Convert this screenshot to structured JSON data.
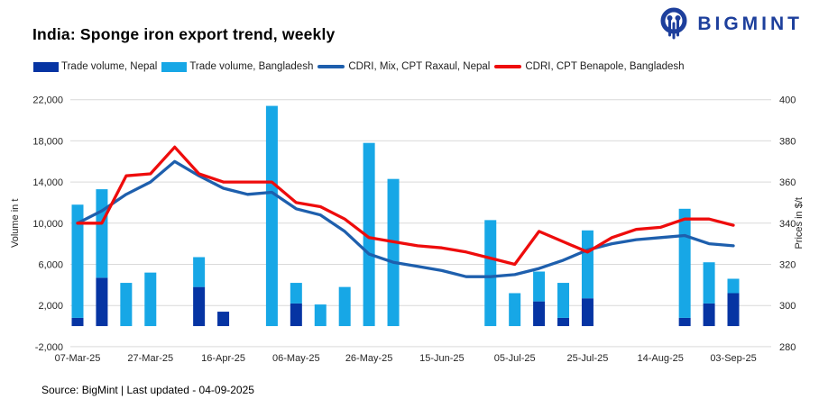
{
  "header": {
    "title": "India: Sponge iron export trend, weekly",
    "brand_name": "BIGMINT"
  },
  "footer": {
    "source": "Source: BigMint | Last updated - 04-09-2025"
  },
  "colors": {
    "brand_blue": "#1d3f9c",
    "grid": "#d9d9d9",
    "axis_text": "#262626"
  },
  "chart_data": {
    "type": "combo_bar_line",
    "n_points": 28,
    "x_label_every": 3,
    "x_tick_labels": [
      "07-Mar-25",
      "27-Mar-25",
      "16-Apr-25",
      "06-May-25",
      "26-May-25",
      "15-Jun-25",
      "05-Jul-25",
      "25-Jul-25",
      "14-Aug-25",
      "03-Sep-25"
    ],
    "grid": true,
    "legend_position": "top",
    "left_axis": {
      "title": "Volume in t",
      "min": -2000,
      "max": 22000,
      "step": 4000
    },
    "right_axis": {
      "title": "Prices in $/t",
      "min": 280,
      "max": 400,
      "step": 20
    },
    "series": [
      {
        "name": "Trade volume, Nepal",
        "type": "bar",
        "axis": "left",
        "stack": "volume",
        "color": "#0634a3",
        "values": [
          800,
          4700,
          0,
          0,
          null,
          3800,
          1400,
          null,
          0,
          2200,
          0,
          0,
          0,
          0,
          null,
          null,
          null,
          0,
          0,
          2400,
          800,
          2700,
          null,
          null,
          null,
          800,
          2200,
          3200
        ]
      },
      {
        "name": "Trade volume, Bangladesh",
        "type": "bar",
        "axis": "left",
        "stack": "volume",
        "color": "#17a7e6",
        "values": [
          11000,
          8600,
          4200,
          5200,
          null,
          2900,
          0,
          null,
          21400,
          2000,
          2100,
          3800,
          17800,
          14300,
          null,
          null,
          null,
          10300,
          3200,
          2900,
          3400,
          6600,
          null,
          null,
          null,
          10600,
          4000,
          1400
        ]
      },
      {
        "name": "CDRI, Mix, CPT Raxaul, Nepal",
        "type": "line",
        "axis": "right",
        "color": "#1e5fad",
        "values": [
          340,
          346,
          354,
          360,
          370,
          363,
          357,
          354,
          355,
          347,
          344,
          336,
          325,
          321,
          319,
          317,
          314,
          314,
          315,
          318,
          322,
          327,
          330,
          332,
          333,
          334,
          330,
          329
        ]
      },
      {
        "name": "CDRI, CPT Benapole, Bangladesh",
        "type": "line",
        "axis": "right",
        "color": "#ee0c0c",
        "values": [
          340,
          340,
          363,
          364,
          377,
          364,
          360,
          360,
          360,
          350,
          348,
          342,
          333,
          331,
          329,
          328,
          326,
          323,
          320,
          336,
          331,
          326,
          333,
          337,
          338,
          342,
          342,
          339
        ]
      }
    ]
  }
}
